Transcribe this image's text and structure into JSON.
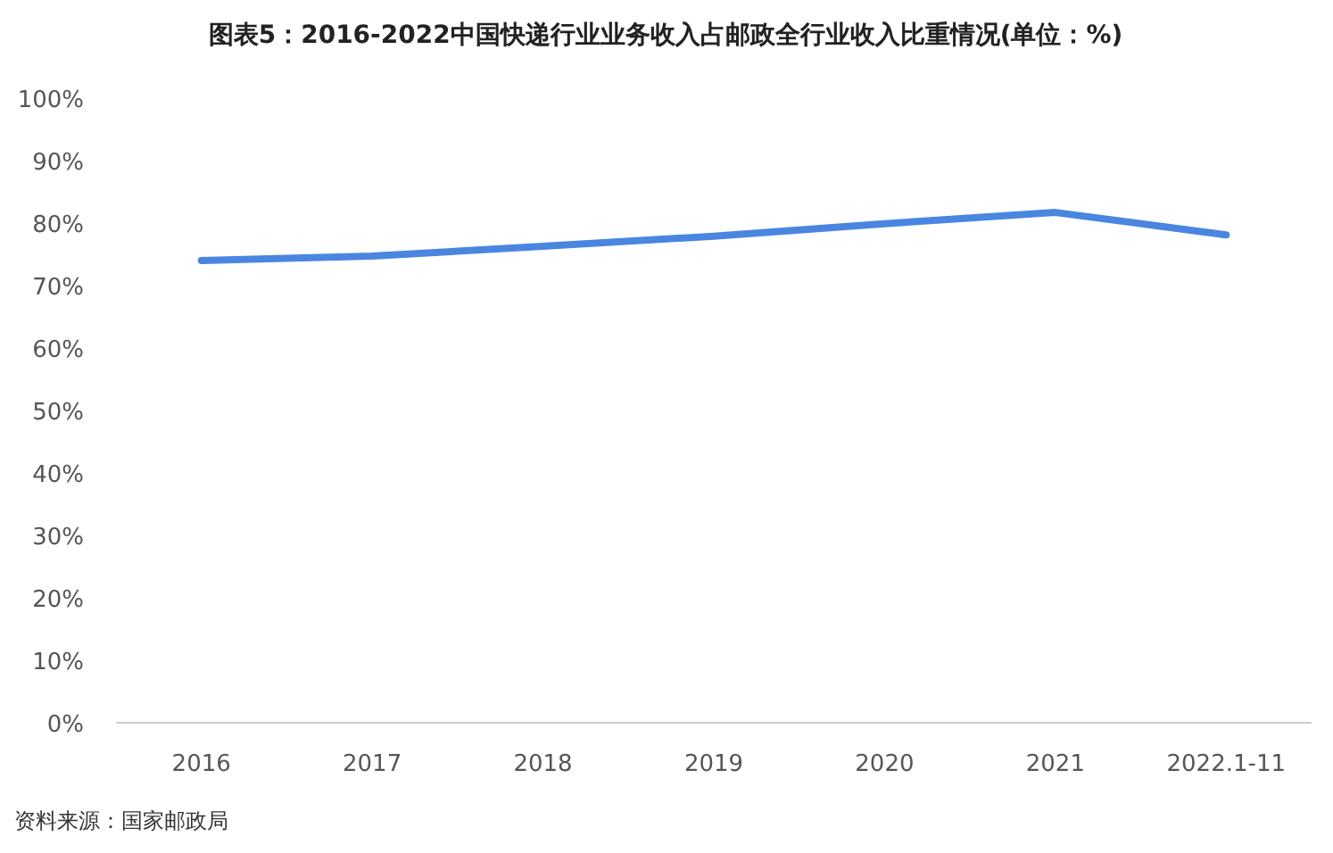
{
  "chart_data": {
    "type": "line",
    "title": "图表5：2016-2022中国快递行业业务收入占邮政全行业收入比重情况(单位：%)",
    "categories": [
      "2016",
      "2017",
      "2018",
      "2019",
      "2020",
      "2021",
      "2022.1-11"
    ],
    "series": [
      {
        "color": "#4a86e0",
        "values": [
          74.0,
          74.7,
          76.3,
          77.9,
          79.9,
          81.7,
          78.1
        ]
      }
    ],
    "ylim": [
      0,
      100
    ],
    "yticks": [
      {
        "value": 0,
        "label": "0%"
      },
      {
        "value": 10,
        "label": "10%"
      },
      {
        "value": 20,
        "label": "20%"
      },
      {
        "value": 30,
        "label": "30%"
      },
      {
        "value": 40,
        "label": "40%"
      },
      {
        "value": 50,
        "label": "50%"
      },
      {
        "value": 60,
        "label": "60%"
      },
      {
        "value": 70,
        "label": "70%"
      },
      {
        "value": 80,
        "label": "80%"
      },
      {
        "value": 90,
        "label": "90%"
      },
      {
        "value": 100,
        "label": "100%"
      }
    ],
    "grid": false,
    "marker": "none",
    "line_style": "solid",
    "annotations": [
      "资料来源：国家邮政局"
    ]
  }
}
